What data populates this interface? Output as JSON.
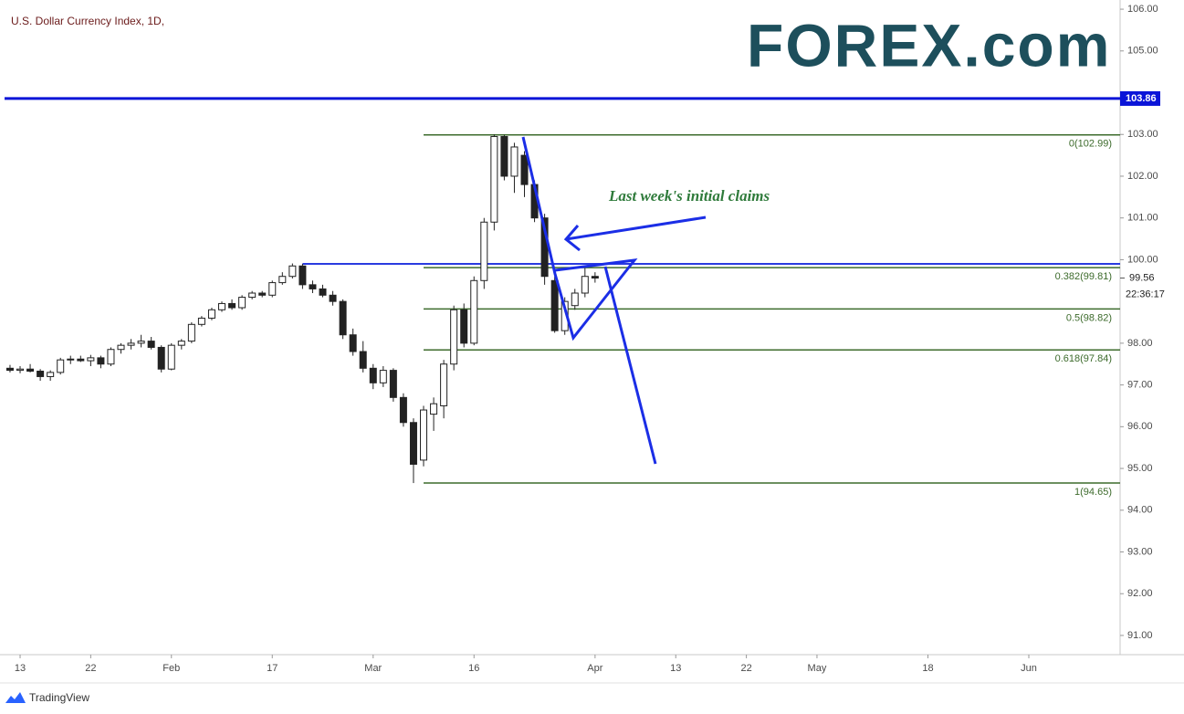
{
  "chart_data": {
    "type": "candlestick",
    "title": "U.S. Dollar Currency Index, 1D,",
    "logo": "FOREX.com",
    "footer": "TradingView",
    "annotation": "Last week's initial claims",
    "up_color": "#ffffff",
    "down_color": "#222222",
    "open": [
      97.4,
      97.35,
      97.38,
      97.33,
      97.2,
      97.3,
      97.6,
      97.62,
      97.58,
      97.65,
      97.5,
      97.85,
      97.95,
      98.0,
      98.05,
      97.9,
      97.38,
      97.95,
      98.05,
      98.45,
      98.6,
      98.8,
      98.95,
      98.85,
      99.1,
      99.2,
      99.15,
      99.45,
      99.6,
      99.85,
      99.4,
      99.3,
      99.15,
      99.0,
      98.2,
      97.8,
      97.4,
      97.05,
      97.35,
      96.7,
      96.1,
      95.2,
      96.3,
      96.5,
      97.5,
      98.8,
      98.0,
      99.5,
      100.9,
      102.95,
      102.0,
      102.5,
      101.8,
      101.0,
      99.5,
      98.3,
      98.9,
      99.2,
      99.6
    ],
    "high": [
      97.48,
      97.45,
      97.5,
      97.38,
      97.35,
      97.65,
      97.7,
      97.7,
      97.72,
      97.7,
      97.9,
      98.0,
      98.1,
      98.2,
      98.15,
      97.95,
      98.0,
      98.1,
      98.5,
      98.65,
      98.85,
      99.0,
      99.05,
      99.15,
      99.25,
      99.25,
      99.5,
      99.7,
      99.91,
      99.9,
      99.5,
      99.4,
      99.25,
      99.05,
      98.35,
      98.05,
      97.5,
      97.45,
      97.4,
      96.8,
      96.2,
      96.5,
      96.7,
      97.6,
      98.9,
      98.95,
      99.6,
      101.0,
      103.0,
      102.99,
      102.8,
      102.6,
      101.9,
      101.1,
      99.6,
      99.1,
      99.3,
      99.8,
      99.7
    ],
    "low": [
      97.3,
      97.28,
      97.3,
      97.1,
      97.1,
      97.25,
      97.5,
      97.55,
      97.45,
      97.4,
      97.45,
      97.75,
      97.85,
      97.9,
      97.85,
      97.3,
      97.35,
      97.85,
      98.0,
      98.4,
      98.55,
      98.75,
      98.8,
      98.8,
      99.05,
      99.1,
      99.1,
      99.4,
      99.55,
      99.3,
      99.2,
      99.1,
      98.9,
      98.1,
      97.7,
      97.3,
      96.9,
      96.95,
      96.6,
      96.0,
      94.65,
      95.05,
      95.9,
      96.2,
      97.35,
      97.9,
      97.95,
      99.3,
      100.7,
      101.9,
      101.6,
      101.5,
      100.9,
      99.4,
      98.25,
      98.2,
      98.8,
      99.1,
      99.45
    ],
    "close": [
      97.35,
      97.38,
      97.33,
      97.2,
      97.3,
      97.6,
      97.62,
      97.58,
      97.65,
      97.5,
      97.85,
      97.95,
      98.0,
      98.05,
      97.9,
      97.38,
      97.95,
      98.05,
      98.45,
      98.6,
      98.8,
      98.95,
      98.85,
      99.1,
      99.2,
      99.15,
      99.45,
      99.6,
      99.85,
      99.4,
      99.3,
      99.15,
      99.0,
      98.2,
      97.8,
      97.4,
      97.05,
      97.35,
      96.7,
      96.1,
      95.1,
      96.4,
      96.55,
      97.5,
      98.8,
      98.0,
      99.5,
      100.9,
      102.95,
      102.0,
      102.7,
      101.8,
      101.0,
      99.6,
      98.3,
      99.0,
      99.2,
      99.6,
      99.56
    ],
    "xlim": [
      -0.54,
      110.05
    ],
    "xticks": [
      {
        "value": 1,
        "label": "13"
      },
      {
        "value": 8,
        "label": "22"
      },
      {
        "value": 16,
        "label": "Feb"
      },
      {
        "value": 26,
        "label": "17"
      },
      {
        "value": 36,
        "label": "Mar"
      },
      {
        "value": 46,
        "label": "16"
      },
      {
        "value": 58,
        "label": "Apr"
      },
      {
        "value": 66,
        "label": "13"
      },
      {
        "value": 73,
        "label": "22"
      },
      {
        "value": 80,
        "label": "May"
      },
      {
        "value": 91,
        "label": "18"
      },
      {
        "value": 101,
        "label": "Jun"
      }
    ],
    "ylim": [
      90.54,
      106.22
    ],
    "yticks": [
      {
        "value": 106,
        "label": "106.00"
      },
      {
        "value": 105,
        "label": "105.00"
      },
      {
        "value": 103,
        "label": "103.00"
      },
      {
        "value": 102,
        "label": "102.00"
      },
      {
        "value": 101,
        "label": "101.00"
      },
      {
        "value": 100,
        "label": "100.00"
      },
      {
        "value": 98,
        "label": "98.00"
      },
      {
        "value": 97,
        "label": "97.00"
      },
      {
        "value": 96,
        "label": "96.00"
      },
      {
        "value": 95,
        "label": "95.00"
      },
      {
        "value": 94,
        "label": "94.00"
      },
      {
        "value": 93,
        "label": "93.00"
      },
      {
        "value": 92,
        "label": "92.00"
      },
      {
        "value": 91,
        "label": "91.00"
      }
    ],
    "hlines": [
      {
        "value": 103.86,
        "label": "103.86",
        "color": "#0a14d8"
      },
      {
        "value": 99.9,
        "x_start": 29,
        "color": "#2a3be0"
      }
    ],
    "fib_color": "#3d6b2c",
    "fib_x_start": 41,
    "fib_levels": [
      {
        "value": 102.99,
        "label": "0(102.99)"
      },
      {
        "value": 99.81,
        "label": "0.382(99.81)"
      },
      {
        "value": 98.82,
        "label": "0.5(98.82)"
      },
      {
        "value": 97.84,
        "label": "0.618(97.84)"
      },
      {
        "value": 94.65,
        "label": "1(94.65)"
      }
    ],
    "last_price": {
      "value": 99.56,
      "label": "99.56"
    },
    "countdown": "22:36:17"
  }
}
